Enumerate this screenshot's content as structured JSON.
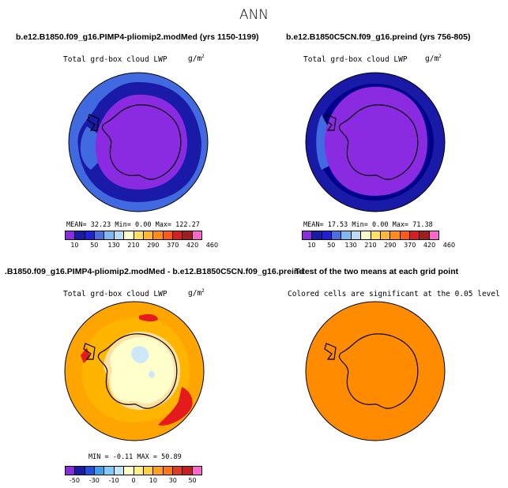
{
  "title": "ANN",
  "panels": {
    "tl": {
      "case": "b.e12.B1850.f09_g16.PIMP4-pliomip2.modMed (yrs 1150-1199)",
      "field": "Total grd-box cloud LWP",
      "units": "g/m",
      "units_exp": "2",
      "stats": "MEAN=   32.23  Min=     0.00  Max=  122.27"
    },
    "tr": {
      "case": "b.e12.B1850C5CN.f09_g16.preind (yrs 756-805)",
      "field": "Total grd-box cloud LWP",
      "units": "g/m",
      "units_exp": "2",
      "stats": "MEAN=   17.53  Min=     0.00  Max=   71.38"
    },
    "bl": {
      "case": ".B1850.f09_g16.PIMP4-pliomip2.modMed - b.e12.B1850C5CN.f09_g16.preind",
      "field": "Total grd-box cloud LWP",
      "units": "g/m",
      "units_exp": "2",
      "stats": "MIN =  -0.11  MAX =  50.89"
    },
    "br": {
      "case": "T-test of the two means at each grid point",
      "note": "Colored cells are significant at the 0.05 level"
    }
  },
  "colorbars": {
    "abs": {
      "colors": [
        "#8a2be2",
        "#1a1aa8",
        "#2020d8",
        "#4a6fe0",
        "#80b8f0",
        "#b8dcf8",
        "#ffffc8",
        "#ffe060",
        "#ffb830",
        "#ff8c1a",
        "#ff5a14",
        "#d81e1e",
        "#a01e1e",
        "#ff66cc"
      ],
      "labels": [
        "10",
        "50",
        "130",
        "210",
        "290",
        "370",
        "420",
        "460"
      ]
    },
    "diff": {
      "colors": [
        "#8a2be2",
        "#1a1aa8",
        "#2050e0",
        "#3aa0f0",
        "#80ccf8",
        "#c0e8fa",
        "#ffffc8",
        "#fff080",
        "#ffd040",
        "#ffa020",
        "#ff7814",
        "#e03c1e",
        "#c81e1e",
        "#ff66cc"
      ],
      "labels": [
        "-50",
        "-30",
        "-10",
        "0",
        "10",
        "30",
        "50"
      ]
    }
  },
  "map_colors": {
    "tl": {
      "outer": "#4169e0",
      "band": "#1a1aa8",
      "inner": "#8a2be2"
    },
    "tr": {
      "outer": "#4169e0",
      "band": "#1a1aa8",
      "inner": "#8a2be2"
    },
    "bl": {
      "outer": "#ffa500",
      "ring": "#ffb400",
      "land": "#ffffcc",
      "spot": "#cce8f8",
      "red": "#e41a1c"
    },
    "br": {
      "fill": "#ff8c00"
    }
  }
}
